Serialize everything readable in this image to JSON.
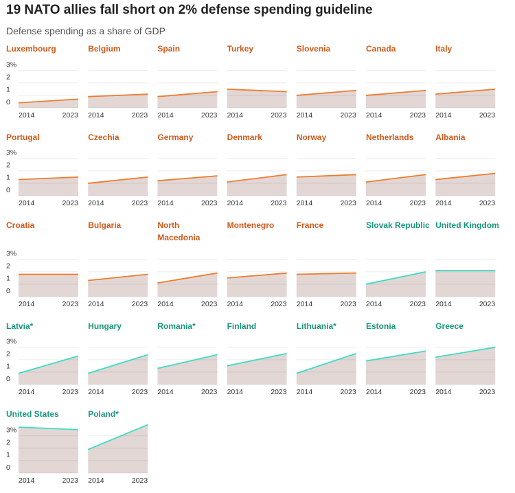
{
  "title": "19 NATO allies fall short on 2% defense spending guideline",
  "subtitle": "Defense spending as a share of GDP",
  "chart_data": [
    {
      "type": "area",
      "title": "Luxembourg",
      "x": [
        2014,
        2023
      ],
      "values": [
        0.4,
        0.7
      ],
      "color": "#ef7b2d",
      "title_color": "#d05a1b",
      "fill": "#e2d7d5",
      "xlim": [
        2014,
        2023
      ],
      "xticks": [
        2014,
        2023
      ],
      "ylim": [
        0,
        3.1
      ],
      "yticks": [
        {
          "value": 3,
          "label": "3%"
        },
        2,
        1,
        0
      ],
      "grid": true
    },
    {
      "type": "area",
      "title": "Belgium",
      "x": [
        2014,
        2023
      ],
      "values": [
        0.9,
        1.1
      ],
      "color": "#ef7b2d",
      "title_color": "#d05a1b",
      "fill": "#e2d7d5",
      "xlim": [
        2014,
        2023
      ],
      "xticks": [
        2014,
        2023
      ],
      "ylim": [
        0,
        3.1
      ],
      "yticks": [
        {
          "value": 3,
          "label": "3%"
        },
        2,
        1,
        0
      ],
      "grid": true
    },
    {
      "type": "area",
      "title": "Spain",
      "x": [
        2014,
        2023
      ],
      "values": [
        0.9,
        1.3
      ],
      "color": "#ef7b2d",
      "title_color": "#d05a1b",
      "fill": "#e2d7d5",
      "xlim": [
        2014,
        2023
      ],
      "xticks": [
        2014,
        2023
      ],
      "ylim": [
        0,
        3.1
      ],
      "yticks": [
        {
          "value": 3,
          "label": "3%"
        },
        2,
        1,
        0
      ],
      "grid": true
    },
    {
      "type": "area",
      "title": "Turkey",
      "x": [
        2014,
        2023
      ],
      "values": [
        1.5,
        1.3
      ],
      "color": "#ef7b2d",
      "title_color": "#d05a1b",
      "fill": "#e2d7d5",
      "xlim": [
        2014,
        2023
      ],
      "xticks": [
        2014,
        2023
      ],
      "ylim": [
        0,
        3.1
      ],
      "yticks": [
        {
          "value": 3,
          "label": "3%"
        },
        2,
        1,
        0
      ],
      "grid": true
    },
    {
      "type": "area",
      "title": "Slovenia",
      "x": [
        2014,
        2023
      ],
      "values": [
        1.0,
        1.4
      ],
      "color": "#ef7b2d",
      "title_color": "#d05a1b",
      "fill": "#e2d7d5",
      "xlim": [
        2014,
        2023
      ],
      "xticks": [
        2014,
        2023
      ],
      "ylim": [
        0,
        3.1
      ],
      "yticks": [
        {
          "value": 3,
          "label": "3%"
        },
        2,
        1,
        0
      ],
      "grid": true
    },
    {
      "type": "area",
      "title": "Canada",
      "x": [
        2014,
        2023
      ],
      "values": [
        1.0,
        1.4
      ],
      "color": "#ef7b2d",
      "title_color": "#d05a1b",
      "fill": "#e2d7d5",
      "xlim": [
        2014,
        2023
      ],
      "xticks": [
        2014,
        2023
      ],
      "ylim": [
        0,
        3.1
      ],
      "yticks": [
        {
          "value": 3,
          "label": "3%"
        },
        2,
        1,
        0
      ],
      "grid": true
    },
    {
      "type": "area",
      "title": "Italy",
      "x": [
        2014,
        2023
      ],
      "values": [
        1.1,
        1.5
      ],
      "color": "#ef7b2d",
      "title_color": "#d05a1b",
      "fill": "#e2d7d5",
      "xlim": [
        2014,
        2023
      ],
      "xticks": [
        2014,
        2023
      ],
      "ylim": [
        0,
        3.1
      ],
      "yticks": [
        {
          "value": 3,
          "label": "3%"
        },
        2,
        1,
        0
      ],
      "grid": true
    },
    {
      "type": "area",
      "title": "Portugal",
      "x": [
        2014,
        2023
      ],
      "values": [
        1.3,
        1.5
      ],
      "color": "#ef7b2d",
      "title_color": "#d05a1b",
      "fill": "#e2d7d5",
      "xlim": [
        2014,
        2023
      ],
      "xticks": [
        2014,
        2023
      ],
      "ylim": [
        0,
        3.1
      ],
      "yticks": [
        {
          "value": 3,
          "label": "3%"
        },
        2,
        1,
        0
      ],
      "grid": true
    },
    {
      "type": "area",
      "title": "Czechia",
      "x": [
        2014,
        2023
      ],
      "values": [
        1.0,
        1.5
      ],
      "color": "#ef7b2d",
      "title_color": "#d05a1b",
      "fill": "#e2d7d5",
      "xlim": [
        2014,
        2023
      ],
      "xticks": [
        2014,
        2023
      ],
      "ylim": [
        0,
        3.1
      ],
      "yticks": [
        {
          "value": 3,
          "label": "3%"
        },
        2,
        1,
        0
      ],
      "grid": true
    },
    {
      "type": "area",
      "title": "Germany",
      "x": [
        2014,
        2023
      ],
      "values": [
        1.2,
        1.6
      ],
      "color": "#ef7b2d",
      "title_color": "#d05a1b",
      "fill": "#e2d7d5",
      "xlim": [
        2014,
        2023
      ],
      "xticks": [
        2014,
        2023
      ],
      "ylim": [
        0,
        3.1
      ],
      "yticks": [
        {
          "value": 3,
          "label": "3%"
        },
        2,
        1,
        0
      ],
      "grid": true
    },
    {
      "type": "area",
      "title": "Denmark",
      "x": [
        2014,
        2023
      ],
      "values": [
        1.1,
        1.7
      ],
      "color": "#ef7b2d",
      "title_color": "#d05a1b",
      "fill": "#e2d7d5",
      "xlim": [
        2014,
        2023
      ],
      "xticks": [
        2014,
        2023
      ],
      "ylim": [
        0,
        3.1
      ],
      "yticks": [
        {
          "value": 3,
          "label": "3%"
        },
        2,
        1,
        0
      ],
      "grid": true
    },
    {
      "type": "area",
      "title": "Norway",
      "x": [
        2014,
        2023
      ],
      "values": [
        1.5,
        1.7
      ],
      "color": "#ef7b2d",
      "title_color": "#d05a1b",
      "fill": "#e2d7d5",
      "xlim": [
        2014,
        2023
      ],
      "xticks": [
        2014,
        2023
      ],
      "ylim": [
        0,
        3.1
      ],
      "yticks": [
        {
          "value": 3,
          "label": "3%"
        },
        2,
        1,
        0
      ],
      "grid": true
    },
    {
      "type": "area",
      "title": "Netherlands",
      "x": [
        2014,
        2023
      ],
      "values": [
        1.1,
        1.7
      ],
      "color": "#ef7b2d",
      "title_color": "#d05a1b",
      "fill": "#e2d7d5",
      "xlim": [
        2014,
        2023
      ],
      "xticks": [
        2014,
        2023
      ],
      "ylim": [
        0,
        3.1
      ],
      "yticks": [
        {
          "value": 3,
          "label": "3%"
        },
        2,
        1,
        0
      ],
      "grid": true
    },
    {
      "type": "area",
      "title": "Albania",
      "x": [
        2014,
        2023
      ],
      "values": [
        1.3,
        1.8
      ],
      "color": "#ef7b2d",
      "title_color": "#d05a1b",
      "fill": "#e2d7d5",
      "xlim": [
        2014,
        2023
      ],
      "xticks": [
        2014,
        2023
      ],
      "ylim": [
        0,
        3.1
      ],
      "yticks": [
        {
          "value": 3,
          "label": "3%"
        },
        2,
        1,
        0
      ],
      "grid": true
    },
    {
      "type": "area",
      "title": "Croatia",
      "x": [
        2014,
        2023
      ],
      "values": [
        1.8,
        1.8
      ],
      "color": "#ef7b2d",
      "title_color": "#d05a1b",
      "fill": "#e2d7d5",
      "xlim": [
        2014,
        2023
      ],
      "xticks": [
        2014,
        2023
      ],
      "ylim": [
        0,
        3.1
      ],
      "yticks": [
        {
          "value": 3,
          "label": "3%"
        },
        2,
        1,
        0
      ],
      "grid": true
    },
    {
      "type": "area",
      "title": "Bulgaria",
      "x": [
        2014,
        2023
      ],
      "values": [
        1.3,
        1.8
      ],
      "color": "#ef7b2d",
      "title_color": "#d05a1b",
      "fill": "#e2d7d5",
      "xlim": [
        2014,
        2023
      ],
      "xticks": [
        2014,
        2023
      ],
      "ylim": [
        0,
        3.1
      ],
      "yticks": [
        {
          "value": 3,
          "label": "3%"
        },
        2,
        1,
        0
      ],
      "grid": true
    },
    {
      "type": "area",
      "title": "North Macedonia",
      "x": [
        2014,
        2023
      ],
      "values": [
        1.1,
        1.9
      ],
      "color": "#ef7b2d",
      "title_color": "#d05a1b",
      "fill": "#e2d7d5",
      "xlim": [
        2014,
        2023
      ],
      "xticks": [
        2014,
        2023
      ],
      "ylim": [
        0,
        3.1
      ],
      "yticks": [
        {
          "value": 3,
          "label": "3%"
        },
        2,
        1,
        0
      ],
      "grid": true
    },
    {
      "type": "area",
      "title": "Montenegro",
      "x": [
        2014,
        2023
      ],
      "values": [
        1.5,
        1.9
      ],
      "color": "#ef7b2d",
      "title_color": "#d05a1b",
      "fill": "#e2d7d5",
      "xlim": [
        2014,
        2023
      ],
      "xticks": [
        2014,
        2023
      ],
      "ylim": [
        0,
        3.1
      ],
      "yticks": [
        {
          "value": 3,
          "label": "3%"
        },
        2,
        1,
        0
      ],
      "grid": true
    },
    {
      "type": "area",
      "title": "France",
      "x": [
        2014,
        2023
      ],
      "values": [
        1.8,
        1.9
      ],
      "color": "#ef7b2d",
      "title_color": "#d05a1b",
      "fill": "#e2d7d5",
      "xlim": [
        2014,
        2023
      ],
      "xticks": [
        2014,
        2023
      ],
      "ylim": [
        0,
        3.1
      ],
      "yticks": [
        {
          "value": 3,
          "label": "3%"
        },
        2,
        1,
        0
      ],
      "grid": true
    },
    {
      "type": "area",
      "title": "Slovak Republic",
      "x": [
        2014,
        2023
      ],
      "values": [
        1.0,
        2.0
      ],
      "color": "#3fdcc4",
      "title_color": "#18967c",
      "fill": "#e2d7d5",
      "xlim": [
        2014,
        2023
      ],
      "xticks": [
        2014,
        2023
      ],
      "ylim": [
        0,
        3.1
      ],
      "yticks": [
        {
          "value": 3,
          "label": "3%"
        },
        2,
        1,
        0
      ],
      "grid": true
    },
    {
      "type": "area",
      "title": "United Kingdom",
      "x": [
        2014,
        2023
      ],
      "values": [
        2.1,
        2.1
      ],
      "color": "#3fdcc4",
      "title_color": "#18967c",
      "fill": "#e2d7d5",
      "xlim": [
        2014,
        2023
      ],
      "xticks": [
        2014,
        2023
      ],
      "ylim": [
        0,
        3.1
      ],
      "yticks": [
        {
          "value": 3,
          "label": "3%"
        },
        2,
        1,
        0
      ],
      "grid": true
    },
    {
      "type": "area",
      "title": "Latvia*",
      "x": [
        2014,
        2023
      ],
      "values": [
        0.9,
        2.3
      ],
      "color": "#3fdcc4",
      "title_color": "#18967c",
      "fill": "#e2d7d5",
      "xlim": [
        2014,
        2023
      ],
      "xticks": [
        2014,
        2023
      ],
      "ylim": [
        0,
        3.1
      ],
      "yticks": [
        {
          "value": 3,
          "label": "3%"
        },
        2,
        1,
        0
      ],
      "grid": true
    },
    {
      "type": "area",
      "title": "Hungary",
      "x": [
        2014,
        2023
      ],
      "values": [
        0.9,
        2.4
      ],
      "color": "#3fdcc4",
      "title_color": "#18967c",
      "fill": "#e2d7d5",
      "xlim": [
        2014,
        2023
      ],
      "xticks": [
        2014,
        2023
      ],
      "ylim": [
        0,
        3.1
      ],
      "yticks": [
        {
          "value": 3,
          "label": "3%"
        },
        2,
        1,
        0
      ],
      "grid": true
    },
    {
      "type": "area",
      "title": "Romania*",
      "x": [
        2014,
        2023
      ],
      "values": [
        1.3,
        2.4
      ],
      "color": "#3fdcc4",
      "title_color": "#18967c",
      "fill": "#e2d7d5",
      "xlim": [
        2014,
        2023
      ],
      "xticks": [
        2014,
        2023
      ],
      "ylim": [
        0,
        3.1
      ],
      "yticks": [
        {
          "value": 3,
          "label": "3%"
        },
        2,
        1,
        0
      ],
      "grid": true
    },
    {
      "type": "area",
      "title": "Finland",
      "x": [
        2014,
        2023
      ],
      "values": [
        1.5,
        2.5
      ],
      "color": "#3fdcc4",
      "title_color": "#18967c",
      "fill": "#e2d7d5",
      "xlim": [
        2014,
        2023
      ],
      "xticks": [
        2014,
        2023
      ],
      "ylim": [
        0,
        3.1
      ],
      "yticks": [
        {
          "value": 3,
          "label": "3%"
        },
        2,
        1,
        0
      ],
      "grid": true
    },
    {
      "type": "area",
      "title": "Lithuania*",
      "x": [
        2014,
        2023
      ],
      "values": [
        0.9,
        2.5
      ],
      "color": "#3fdcc4",
      "title_color": "#18967c",
      "fill": "#e2d7d5",
      "xlim": [
        2014,
        2023
      ],
      "xticks": [
        2014,
        2023
      ],
      "ylim": [
        0,
        3.1
      ],
      "yticks": [
        {
          "value": 3,
          "label": "3%"
        },
        2,
        1,
        0
      ],
      "grid": true
    },
    {
      "type": "area",
      "title": "Estonia",
      "x": [
        2014,
        2023
      ],
      "values": [
        1.9,
        2.7
      ],
      "color": "#3fdcc4",
      "title_color": "#18967c",
      "fill": "#e2d7d5",
      "xlim": [
        2014,
        2023
      ],
      "xticks": [
        2014,
        2023
      ],
      "ylim": [
        0,
        3.1
      ],
      "yticks": [
        {
          "value": 3,
          "label": "3%"
        },
        2,
        1,
        0
      ],
      "grid": true
    },
    {
      "type": "area",
      "title": "Greece",
      "x": [
        2014,
        2023
      ],
      "values": [
        2.2,
        3.0
      ],
      "color": "#3fdcc4",
      "title_color": "#18967c",
      "fill": "#e2d7d5",
      "xlim": [
        2014,
        2023
      ],
      "xticks": [
        2014,
        2023
      ],
      "ylim": [
        0,
        3.1
      ],
      "yticks": [
        {
          "value": 3,
          "label": "3%"
        },
        2,
        1,
        0
      ],
      "grid": true
    },
    {
      "type": "area",
      "title": "United States",
      "x": [
        2014,
        2023
      ],
      "values": [
        3.7,
        3.5
      ],
      "color": "#3fdcc4",
      "title_color": "#18967c",
      "fill": "#e2d7d5",
      "xlim": [
        2014,
        2023
      ],
      "xticks": [
        2014,
        2023
      ],
      "ylim": [
        0,
        4
      ],
      "yticks": [
        {
          "value": 3,
          "label": "3%"
        },
        2,
        1,
        0
      ],
      "grid": true
    },
    {
      "type": "area",
      "title": "Poland*",
      "x": [
        2014,
        2023
      ],
      "values": [
        1.9,
        3.9
      ],
      "color": "#3fdcc4",
      "title_color": "#18967c",
      "fill": "#e2d7d5",
      "xlim": [
        2014,
        2023
      ],
      "xticks": [
        2014,
        2023
      ],
      "ylim": [
        0,
        4
      ],
      "yticks": [
        {
          "value": 3,
          "label": "3%"
        },
        2,
        1,
        0
      ],
      "grid": true
    }
  ]
}
